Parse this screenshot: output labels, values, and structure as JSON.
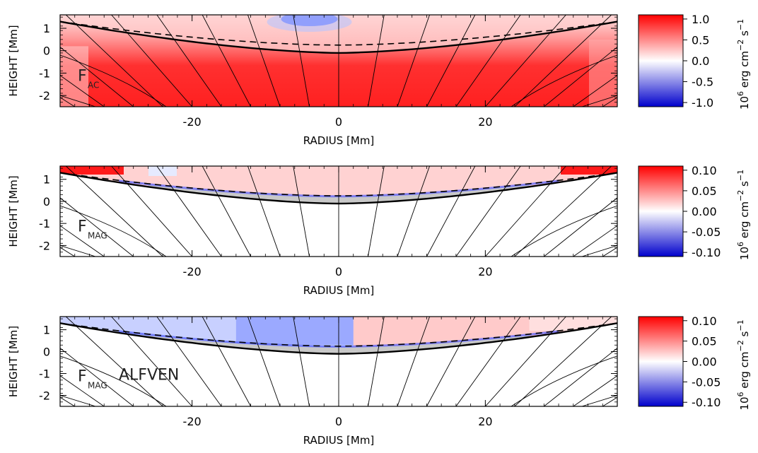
{
  "chart_data": [
    {
      "type": "heatmap",
      "flux_label": "F",
      "flux_sub": "AC",
      "flux_extra": "",
      "xlabel": "RADIUS [Mm]",
      "ylabel": "HEIGHT [Mm]",
      "xlim": [
        -38,
        38
      ],
      "ylim": [
        -2.5,
        1.6
      ],
      "xticks": [
        -20,
        0,
        20
      ],
      "yticks": [
        1,
        0,
        -1,
        -2
      ],
      "colorbar": {
        "range": [
          -1.1,
          1.1
        ],
        "ticks": [
          "1.0",
          "0.5",
          "0.0",
          "-0.5",
          "-1.0"
        ],
        "tick_values": [
          1.0,
          0.5,
          0.0,
          -0.5,
          -1.0
        ],
        "unit_base": "10",
        "unit_exp": "6",
        "unit_text": "erg cm",
        "unit_exp2": "−2",
        "unit_tail": "s",
        "unit_exp3": "−1"
      },
      "colors": {
        "positive": "#ff0000",
        "zero": "#ffffff",
        "negative": "#0000ff",
        "gray": "#c8c8c8"
      },
      "grid": false
    },
    {
      "type": "heatmap",
      "flux_label": "F",
      "flux_sub": "MAG",
      "flux_extra": "",
      "xlabel": "RADIUS [Mm]",
      "ylabel": "HEIGHT [Mm]",
      "xlim": [
        -38,
        38
      ],
      "ylim": [
        -2.5,
        1.6
      ],
      "xticks": [
        -20,
        0,
        20
      ],
      "yticks": [
        1,
        0,
        -1,
        -2
      ],
      "colorbar": {
        "range": [
          -0.11,
          0.11
        ],
        "ticks": [
          "0.10",
          "0.05",
          "0.00",
          "-0.05",
          "-0.10"
        ],
        "tick_values": [
          0.1,
          0.05,
          0.0,
          -0.05,
          -0.1
        ],
        "unit_base": "10",
        "unit_exp": "6",
        "unit_text": "erg cm",
        "unit_exp2": "−2",
        "unit_tail": "s",
        "unit_exp3": "−1"
      },
      "colors": {
        "positive": "#ff0000",
        "zero": "#ffffff",
        "negative": "#0000ff",
        "gray": "#c8c8c8"
      },
      "grid": false
    },
    {
      "type": "heatmap",
      "flux_label": "F",
      "flux_sub": "MAG",
      "flux_extra": "ALFVEN",
      "xlabel": "RADIUS [Mm]",
      "ylabel": "HEIGHT [Mm]",
      "xlim": [
        -38,
        38
      ],
      "ylim": [
        -2.5,
        1.6
      ],
      "xticks": [
        -20,
        0,
        20
      ],
      "yticks": [
        1,
        0,
        -1,
        -2
      ],
      "colorbar": {
        "range": [
          -0.11,
          0.11
        ],
        "ticks": [
          "0.10",
          "0.05",
          "0.00",
          "-0.05",
          "-0.10"
        ],
        "tick_values": [
          0.1,
          0.05,
          0.0,
          -0.05,
          -0.1
        ],
        "unit_base": "10",
        "unit_exp": "6",
        "unit_text": "erg cm",
        "unit_exp2": "−2",
        "unit_tail": "s",
        "unit_exp3": "−1"
      },
      "colors": {
        "positive": "#ff0000",
        "zero": "#ffffff",
        "negative": "#0000ff",
        "gray": "#c8c8c8"
      },
      "grid": false
    }
  ]
}
